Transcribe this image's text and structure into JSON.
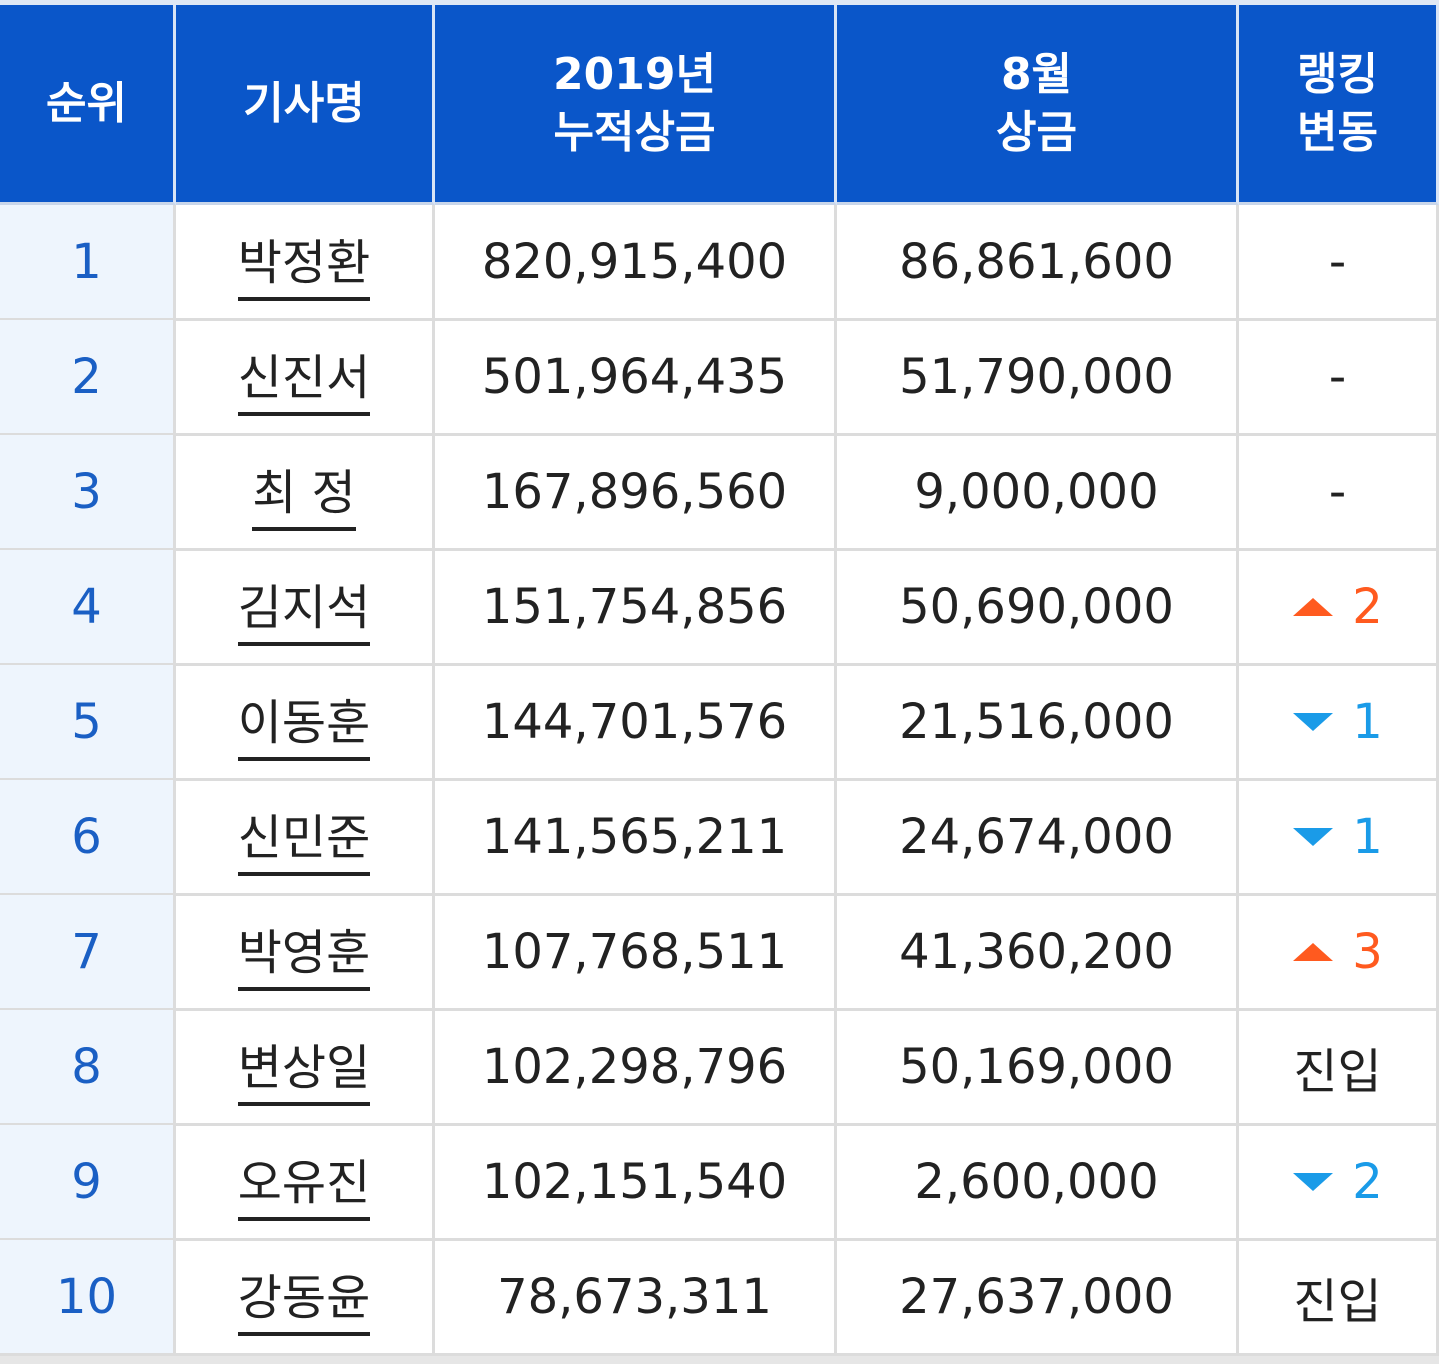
{
  "table": {
    "header": [
      [
        "순위"
      ],
      [
        "기사명"
      ],
      [
        "2019년",
        "누적상금"
      ],
      [
        "8월",
        "상금"
      ],
      [
        "랭킹",
        "변동"
      ]
    ],
    "rows": [
      {
        "rank": "1",
        "name": "박정환",
        "total": "820,915,400",
        "month": "86,861,600",
        "change": {
          "text": "-"
        }
      },
      {
        "rank": "2",
        "name": "신진서",
        "total": "501,964,435",
        "month": "51,790,000",
        "change": {
          "text": "-"
        }
      },
      {
        "rank": "3",
        "name": "최 정",
        "total": "167,896,560",
        "month": "9,000,000",
        "change": {
          "text": "-"
        }
      },
      {
        "rank": "4",
        "name": "김지석",
        "total": "151,754,856",
        "month": "50,690,000",
        "change": {
          "direction": "up",
          "text": "2"
        }
      },
      {
        "rank": "5",
        "name": "이동훈",
        "total": "144,701,576",
        "month": "21,516,000",
        "change": {
          "direction": "down",
          "text": "1"
        }
      },
      {
        "rank": "6",
        "name": "신민준",
        "total": "141,565,211",
        "month": "24,674,000",
        "change": {
          "direction": "down",
          "text": "1"
        }
      },
      {
        "rank": "7",
        "name": "박영훈",
        "total": "107,768,511",
        "month": "41,360,200",
        "change": {
          "direction": "up",
          "text": "3"
        }
      },
      {
        "rank": "8",
        "name": "변상일",
        "total": "102,298,796",
        "month": "50,169,000",
        "change": {
          "text": "진입"
        }
      },
      {
        "rank": "9",
        "name": "오유진",
        "total": "102,151,540",
        "month": "2,600,000",
        "change": {
          "direction": "down",
          "text": "2"
        }
      },
      {
        "rank": "10",
        "name": "강동윤",
        "total": "78,673,311",
        "month": "27,637,000",
        "change": {
          "text": "진입"
        }
      }
    ]
  }
}
